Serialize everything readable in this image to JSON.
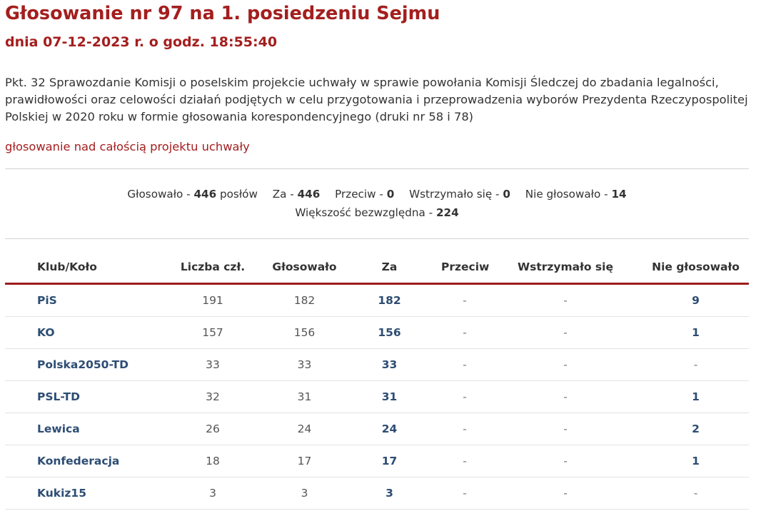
{
  "header": {
    "title": "Głosowanie nr 97 na 1. posiedzeniu Sejmu",
    "subtitle": "dnia 07-12-2023 r. o godz. 18:55:40"
  },
  "description": {
    "line1": "Pkt. 32 Sprawozdanie Komisji o poselskim projekcie uchwały w sprawie powołania Komisji Śledczej do zbadania legalności,",
    "line2": "prawidłowości oraz celowości działań podjętych w celu przygotowania i przeprowadzenia wyborów Prezydenta Rzeczypospolitej",
    "line3": "Polskiej w 2020 roku w formie głosowania korespondencyjnego (druki nr 58 i 78)"
  },
  "vote_type": "głosowanie nad całością projektu uchwały",
  "summary": {
    "voted_label": "Głosowało -",
    "voted_value": "446",
    "voted_unit": "posłów",
    "za_label": "Za -",
    "za_value": "446",
    "przeciw_label": "Przeciw -",
    "przeciw_value": "0",
    "wstrzymalo_label": "Wstrzymało się -",
    "wstrzymalo_value": "0",
    "nie_glosowalo_label": "Nie głosowało -",
    "nie_glosowalo_value": "14",
    "majority_label": "Większość bezwzględna -",
    "majority_value": "224"
  },
  "table": {
    "headers": [
      "Klub/Koło",
      "Liczba czł.",
      "Głosowało",
      "Za",
      "Przeciw",
      "Wstrzymało się",
      "Nie głosowało"
    ],
    "rows": [
      {
        "club": "PiS",
        "members": "191",
        "voted": "182",
        "za": "182",
        "przeciw": "-",
        "wstrzymalo": "-",
        "nie_glosowalo": "9"
      },
      {
        "club": "KO",
        "members": "157",
        "voted": "156",
        "za": "156",
        "przeciw": "-",
        "wstrzymalo": "-",
        "nie_glosowalo": "1"
      },
      {
        "club": "Polska2050-TD",
        "members": "33",
        "voted": "33",
        "za": "33",
        "przeciw": "-",
        "wstrzymalo": "-",
        "nie_glosowalo": "-"
      },
      {
        "club": "PSL-TD",
        "members": "32",
        "voted": "31",
        "za": "31",
        "przeciw": "-",
        "wstrzymalo": "-",
        "nie_glosowalo": "1"
      },
      {
        "club": "Lewica",
        "members": "26",
        "voted": "24",
        "za": "24",
        "przeciw": "-",
        "wstrzymalo": "-",
        "nie_glosowalo": "2"
      },
      {
        "club": "Konfederacja",
        "members": "18",
        "voted": "17",
        "za": "17",
        "przeciw": "-",
        "wstrzymalo": "-",
        "nie_glosowalo": "1"
      },
      {
        "club": "Kukiz15",
        "members": "3",
        "voted": "3",
        "za": "3",
        "przeciw": "-",
        "wstrzymalo": "-",
        "nie_glosowalo": "-"
      }
    ]
  },
  "colors": {
    "heading": "#a41e1e",
    "link": "#2d4d73",
    "header_rule": "#9c1d1d"
  }
}
